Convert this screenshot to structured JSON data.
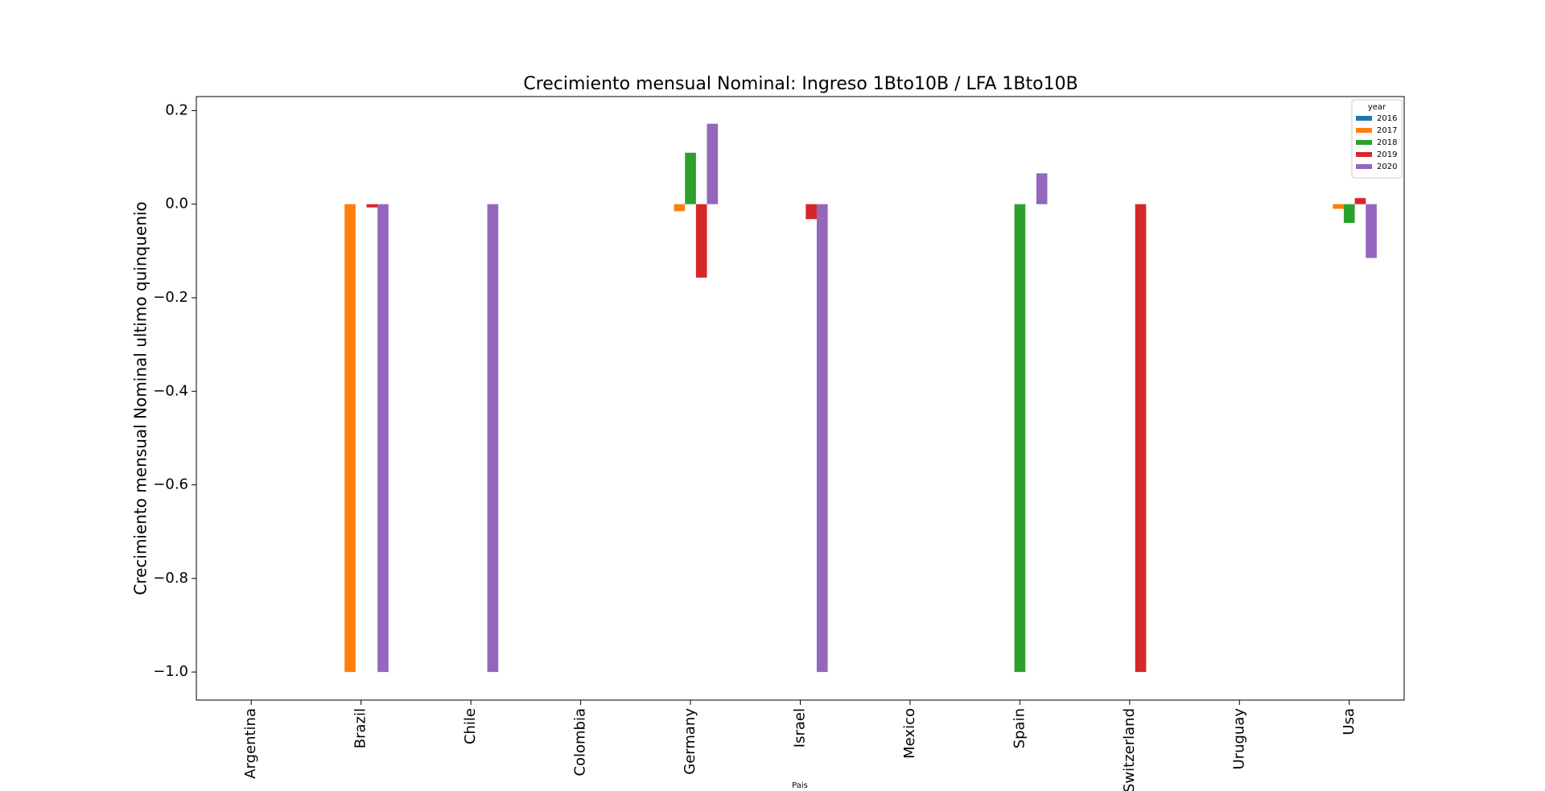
{
  "chart_data": {
    "type": "bar",
    "title": "Crecimiento mensual Nominal: Ingreso 1Bto10B / LFA  1Bto10B",
    "ylabel": "Crecimiento mensual Nominal ultimo quinquenio",
    "xlabel": "Pais",
    "legend_title": "year",
    "legend_position": "upper-right",
    "categories": [
      "Argentina",
      "Brazil",
      "Chile",
      "Colombia",
      "Germany",
      "Israel",
      "Mexico",
      "Spain",
      "Switzerland",
      "Uruguay",
      "Usa"
    ],
    "series": [
      {
        "name": "2016",
        "color": "#1f77b4",
        "values": [
          null,
          null,
          null,
          null,
          null,
          null,
          null,
          null,
          null,
          null,
          null
        ]
      },
      {
        "name": "2017",
        "color": "#ff7f0e",
        "values": [
          null,
          -1.0,
          null,
          null,
          -0.015,
          null,
          null,
          null,
          null,
          null,
          -0.01
        ]
      },
      {
        "name": "2018",
        "color": "#2ca02c",
        "values": [
          null,
          null,
          null,
          null,
          0.11,
          null,
          null,
          -1.0,
          null,
          null,
          -0.04
        ]
      },
      {
        "name": "2019",
        "color": "#d62728",
        "values": [
          null,
          -0.007,
          null,
          null,
          -0.157,
          -0.032,
          null,
          null,
          -1.0,
          null,
          0.013
        ]
      },
      {
        "name": "2020",
        "color": "#9467bd",
        "values": [
          null,
          -1.0,
          -1.0,
          null,
          0.172,
          -1.0,
          null,
          0.066,
          null,
          null,
          -0.115
        ]
      }
    ],
    "ylim": [
      -1.06,
      0.23
    ],
    "yticks": [
      {
        "value": -1.0,
        "label": "−1.0"
      },
      {
        "value": -0.8,
        "label": "−0.8"
      },
      {
        "value": -0.6,
        "label": "−0.6"
      },
      {
        "value": -0.4,
        "label": "−0.4"
      },
      {
        "value": -0.2,
        "label": "−0.2"
      },
      {
        "value": 0.0,
        "label": "0.0"
      },
      {
        "value": 0.2,
        "label": "0.2"
      }
    ],
    "grid": false
  }
}
